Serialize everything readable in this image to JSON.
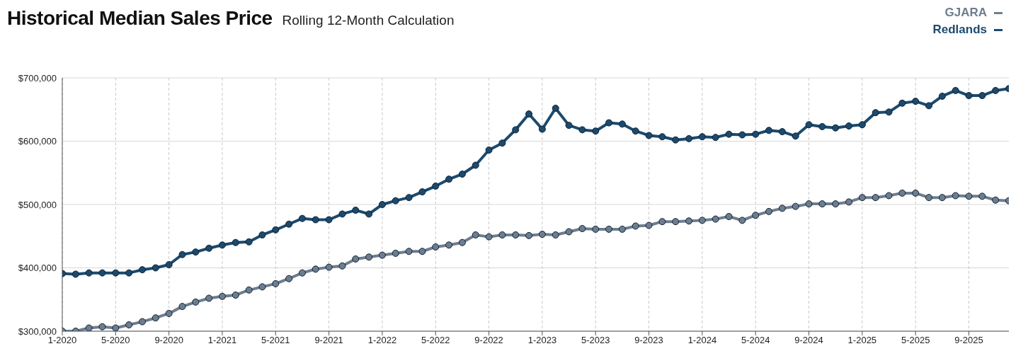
{
  "chart_data": {
    "type": "line",
    "title": "Historical Median Sales Price",
    "subtitle": "Rolling 12-Month Calculation",
    "categories": [
      "1-2020",
      null,
      null,
      null,
      "5-2020",
      null,
      null,
      null,
      "9-2020",
      null,
      null,
      null,
      "1-2021",
      null,
      null,
      null,
      "5-2021",
      null,
      null,
      null,
      "9-2021",
      null,
      null,
      null,
      "1-2022",
      null,
      null,
      null,
      "5-2022",
      null,
      null,
      null,
      "9-2022",
      null,
      null,
      null,
      "1-2023",
      null,
      null,
      null,
      "5-2023",
      null,
      null,
      null,
      "9-2023",
      null,
      null,
      null,
      "1-2024",
      null,
      null,
      null,
      "5-2024",
      null,
      null,
      null,
      "9-2024",
      null,
      null,
      null,
      "1-2025",
      null,
      null,
      null,
      "5-2025",
      null,
      null,
      null,
      "9-2025",
      null,
      null,
      null
    ],
    "series": [
      {
        "name": "GJARA",
        "color": "#6e7d8e",
        "values": [
          300000,
          300000,
          305000,
          307000,
          305000,
          310000,
          315000,
          321000,
          328000,
          339000,
          346000,
          352000,
          355000,
          357000,
          365000,
          370000,
          375000,
          383000,
          392000,
          398000,
          401000,
          403000,
          414000,
          417000,
          420000,
          423000,
          426000,
          426000,
          433000,
          436000,
          440000,
          452000,
          449000,
          452000,
          452000,
          451000,
          453000,
          452000,
          457000,
          462000,
          461000,
          461000,
          461000,
          466000,
          467000,
          473000,
          473000,
          474000,
          475000,
          477000,
          481000,
          475000,
          483000,
          489000,
          494000,
          497000,
          501000,
          501000,
          501000,
          504000,
          511000,
          511000,
          514000,
          518000,
          518000,
          511000,
          511000,
          514000,
          513000,
          513000,
          507000,
          506000
        ]
      },
      {
        "name": "Redlands",
        "color": "#1c4a6e",
        "values": [
          391000,
          390000,
          392000,
          392000,
          392000,
          392000,
          397000,
          400000,
          405000,
          421000,
          425000,
          431000,
          436000,
          440000,
          441000,
          452000,
          460000,
          469000,
          478000,
          476000,
          476000,
          485000,
          491000,
          485000,
          500000,
          506000,
          511000,
          520000,
          529000,
          540000,
          548000,
          562000,
          586000,
          597000,
          618000,
          643000,
          619000,
          652000,
          625000,
          618000,
          616000,
          629000,
          627000,
          616000,
          609000,
          607000,
          602000,
          604000,
          607000,
          606000,
          611000,
          610000,
          611000,
          617000,
          615000,
          608000,
          626000,
          623000,
          621000,
          624000,
          626000,
          645000,
          646000,
          660000,
          663000,
          656000,
          671000,
          680000,
          672000,
          672000,
          680000,
          683000
        ]
      }
    ],
    "ylim": [
      300000,
      700000
    ],
    "yticks": [
      {
        "value": 300000,
        "label": "$300,000"
      },
      {
        "value": 400000,
        "label": "$400,000"
      },
      {
        "value": 500000,
        "label": "$500,000"
      },
      {
        "value": 600000,
        "label": "$600,000"
      },
      {
        "value": 700000,
        "label": "$700,000"
      }
    ],
    "grid": true,
    "legend": "top right",
    "marker": "circle",
    "line_style": "solid"
  }
}
